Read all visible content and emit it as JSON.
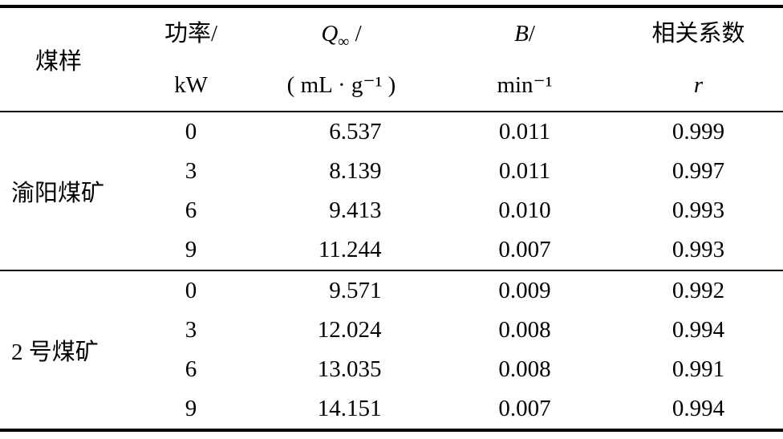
{
  "table": {
    "headers": {
      "sample": "煤样",
      "power_line1": "功率/",
      "power_line2": "kW",
      "q_letter": "Q",
      "q_sub": "∞",
      "q_slash": " /",
      "q_unit": "( mL · g⁻¹ )",
      "b_letter": "B",
      "b_slash": "/",
      "b_unit": "min⁻¹",
      "corr_line1": "相关系数",
      "corr_line2": "r"
    },
    "groups": [
      {
        "sample": "渝阳煤矿",
        "rows": [
          {
            "power": "0",
            "q": "6.537",
            "b": "0.011",
            "r": "0.999"
          },
          {
            "power": "3",
            "q": "8.139",
            "b": "0.011",
            "r": "0.997"
          },
          {
            "power": "6",
            "q": "9.413",
            "b": "0.010",
            "r": "0.993"
          },
          {
            "power": "9",
            "q": "11.244",
            "b": "0.007",
            "r": "0.993"
          }
        ]
      },
      {
        "sample": "2 号煤矿",
        "rows": [
          {
            "power": "0",
            "q": "9.571",
            "b": "0.009",
            "r": "0.992"
          },
          {
            "power": "3",
            "q": "12.024",
            "b": "0.008",
            "r": "0.994"
          },
          {
            "power": "6",
            "q": "13.035",
            "b": "0.008",
            "r": "0.991"
          },
          {
            "power": "9",
            "q": "14.151",
            "b": "0.007",
            "r": "0.994"
          }
        ]
      }
    ]
  },
  "chart_data": {
    "type": "table",
    "columns": [
      "煤样",
      "功率/kW",
      "Q∞/(mL·g⁻¹)",
      "B/min⁻¹",
      "相关系数 r"
    ],
    "rows": [
      [
        "渝阳煤矿",
        0,
        6.537,
        0.011,
        0.999
      ],
      [
        "渝阳煤矿",
        3,
        8.139,
        0.011,
        0.997
      ],
      [
        "渝阳煤矿",
        6,
        9.413,
        0.01,
        0.993
      ],
      [
        "渝阳煤矿",
        9,
        11.244,
        0.007,
        0.993
      ],
      [
        "2 号煤矿",
        0,
        9.571,
        0.009,
        0.992
      ],
      [
        "2 号煤矿",
        3,
        12.024,
        0.008,
        0.994
      ],
      [
        "2 号煤矿",
        6,
        13.035,
        0.008,
        0.991
      ],
      [
        "2 号煤矿",
        9,
        14.151,
        0.007,
        0.994
      ]
    ]
  }
}
